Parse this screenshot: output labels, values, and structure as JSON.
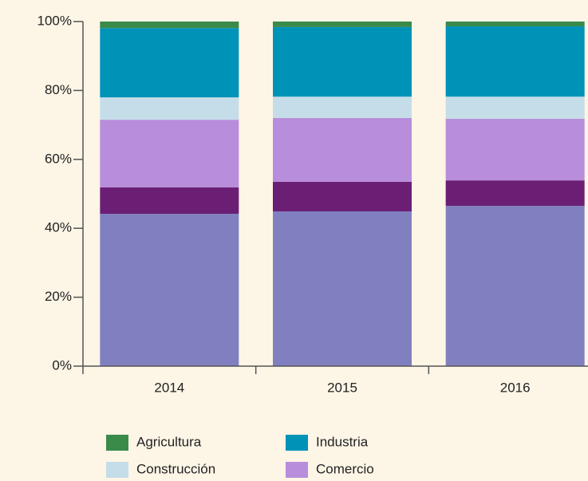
{
  "chart_data": {
    "type": "stacked_bar",
    "categories": [
      "2014",
      "2015",
      "2016"
    ],
    "series": [
      {
        "color": "#8080c0",
        "values": [
          44.2,
          44.9,
          46.5
        ]
      },
      {
        "color": "#6a1f75",
        "values": [
          7.7,
          8.6,
          7.4
        ]
      },
      {
        "name": "Comercio",
        "color": "#b88ddb",
        "values": [
          19.6,
          18.5,
          17.9
        ]
      },
      {
        "name": "Construcción",
        "color": "#c5dde8",
        "values": [
          6.5,
          6.2,
          6.4
        ]
      },
      {
        "name": "Industria",
        "color": "#0093b8",
        "values": [
          20.1,
          20.2,
          20.4
        ]
      },
      {
        "name": "Agricultura",
        "color": "#3a8a4a",
        "values": [
          1.9,
          1.6,
          1.4
        ]
      }
    ],
    "ylim": [
      0,
      100
    ],
    "yticks": [
      {
        "value": 0,
        "label": "0%"
      },
      {
        "value": 20,
        "label": "20%"
      },
      {
        "value": 40,
        "label": "40%"
      },
      {
        "value": 60,
        "label": "60%"
      },
      {
        "value": 80,
        "label": "80%"
      },
      {
        "value": 100,
        "label": "100%"
      }
    ]
  }
}
